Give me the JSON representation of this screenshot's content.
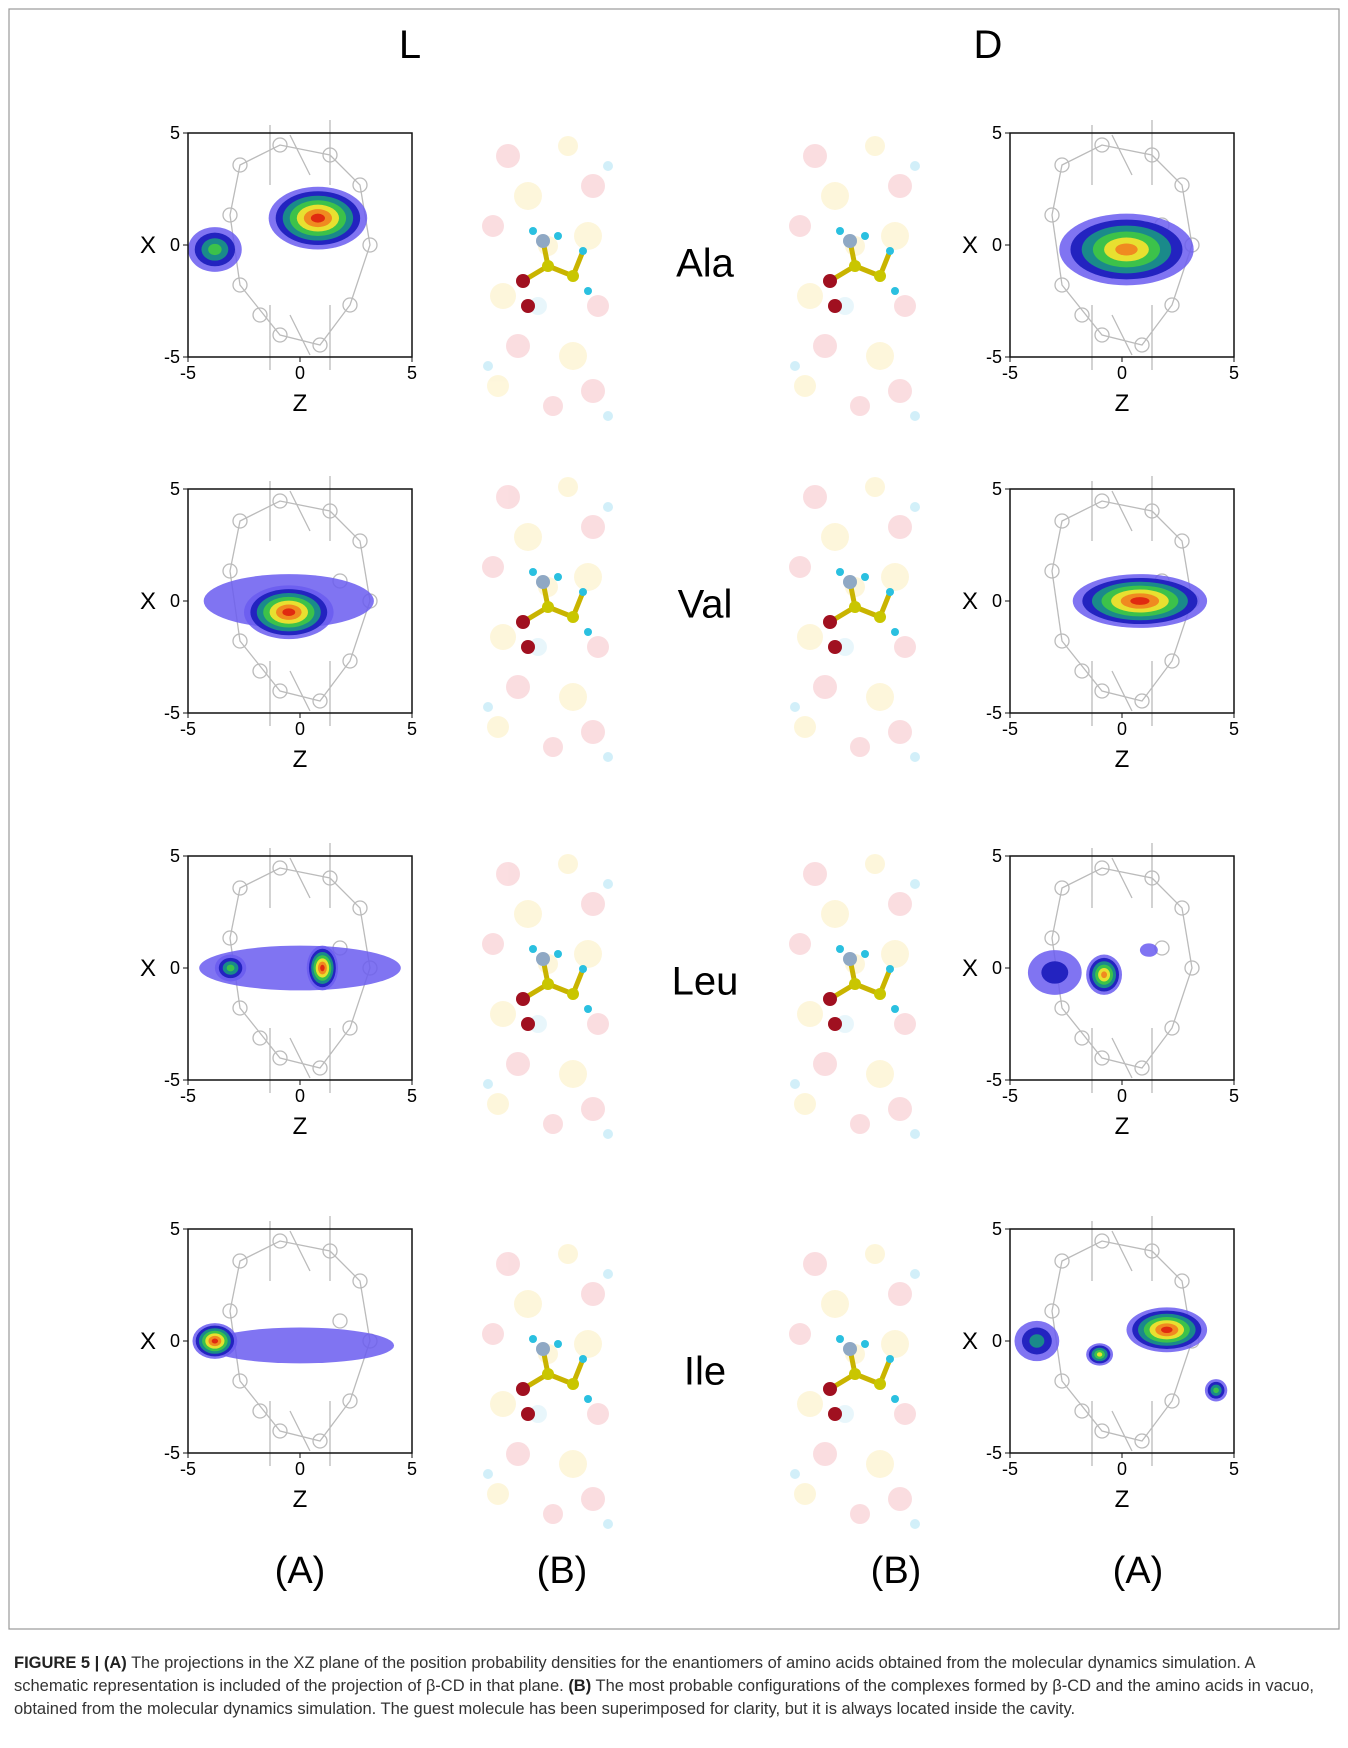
{
  "header": {
    "left": "L",
    "right": "D"
  },
  "rows": [
    {
      "name": "Ala",
      "left_plot": {
        "ticks": [
          -5,
          0,
          5
        ],
        "xlabel": "Z",
        "ylabel": "X"
      },
      "right_plot": {
        "ticks": [
          -5,
          0,
          5
        ],
        "xlabel": "Z",
        "ylabel": "X"
      }
    },
    {
      "name": "Val",
      "left_plot": {
        "ticks": [
          -5,
          0,
          5
        ],
        "xlabel": "Z",
        "ylabel": "X"
      },
      "right_plot": {
        "ticks": [
          -5,
          0,
          5
        ],
        "xlabel": "Z",
        "ylabel": "X"
      }
    },
    {
      "name": "Leu",
      "left_plot": {
        "ticks": [
          -5,
          0,
          5
        ],
        "xlabel": "Z",
        "ylabel": "X"
      },
      "right_plot": {
        "ticks": [
          -5,
          0,
          5
        ],
        "xlabel": "Z",
        "ylabel": "X"
      }
    },
    {
      "name": "Ile",
      "left_plot": {
        "ticks": [
          -5,
          0,
          5
        ],
        "xlabel": "Z",
        "ylabel": "X"
      },
      "right_plot": {
        "ticks": [
          -5,
          0,
          5
        ],
        "xlabel": "Z",
        "ylabel": "X"
      }
    }
  ],
  "panel_labels": [
    "(A)",
    "(B)",
    "(B)",
    "(A)"
  ],
  "caption": {
    "figure_label": "FIGURE 5 |",
    "parts": [
      {
        "label": "(A)",
        "text": "The projections in the XZ plane of the position probability densities for the enantiomers of amino acids obtained from the molecular dynamics simulation. A schematic representation is included of the projection of β-CD in that plane."
      },
      {
        "label": "(B)",
        "text": "The most probable configurations of the complexes formed by β-CD and the amino acids in vacuo, obtained from the molecular dynamics simulation. The guest molecule has been superimposed for clarity, but it is always located inside the cavity."
      }
    ]
  }
}
